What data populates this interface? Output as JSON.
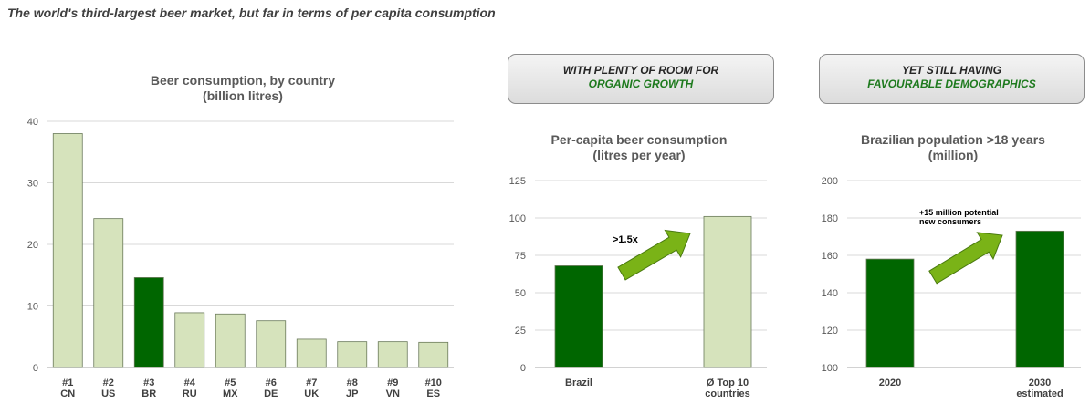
{
  "headline": "The world's third-largest beer market, but far in terms of per capita consumption",
  "colors": {
    "dark_green": "#006600",
    "light_green": "#d6e3bc",
    "arrow_green": "#7ab317",
    "gridline": "#d9d9d9",
    "text": "#404040"
  },
  "banners": [
    {
      "line1": "WITH PLENTY OF ROOM FOR",
      "line2": "ORGANIC GROWTH"
    },
    {
      "line1": "YET STILL HAVING",
      "line2": "FAVOURABLE DEMOGRAPHICS"
    }
  ],
  "chart_data": [
    {
      "type": "bar",
      "title": "Beer consumption, by country",
      "subtitle": "(billion litres)",
      "categories": [
        [
          "#1",
          "CN"
        ],
        [
          "#2",
          "US"
        ],
        [
          "#3",
          "BR"
        ],
        [
          "#4",
          "RU"
        ],
        [
          "#5",
          "MX"
        ],
        [
          "#6",
          "DE"
        ],
        [
          "#7",
          "UK"
        ],
        [
          "#8",
          "JP"
        ],
        [
          "#9",
          "VN"
        ],
        [
          "#10",
          "ES"
        ]
      ],
      "values": [
        38,
        24.2,
        14.6,
        8.9,
        8.7,
        7.6,
        4.6,
        4.2,
        4.2,
        4.1
      ],
      "highlight_index": 2,
      "ylim": [
        0,
        40
      ],
      "yticks": [
        0,
        10,
        20,
        30,
        40
      ],
      "grid": true
    },
    {
      "type": "bar",
      "title": "Per-capita beer consumption",
      "subtitle": "(litres per year)",
      "categories": [
        [
          "Brazil"
        ],
        [
          "Ø Top 10",
          "countries"
        ]
      ],
      "values": [
        68,
        101
      ],
      "bar_colors": [
        "dark",
        "light"
      ],
      "ylim": [
        0,
        125
      ],
      "yticks": [
        0,
        25,
        50,
        75,
        100,
        125
      ],
      "grid": true,
      "annotation": ">1.5x"
    },
    {
      "type": "bar",
      "title": "Brazilian population >18 years",
      "subtitle": "(million)",
      "categories": [
        [
          "2020"
        ],
        [
          "2030",
          "estimated"
        ]
      ],
      "values": [
        158,
        173
      ],
      "bar_colors": [
        "dark",
        "dark"
      ],
      "ylim": [
        100,
        200
      ],
      "yticks": [
        100,
        120,
        140,
        160,
        180,
        200
      ],
      "grid": true,
      "annotation": [
        "+15 million potential",
        "new consumers"
      ]
    }
  ]
}
